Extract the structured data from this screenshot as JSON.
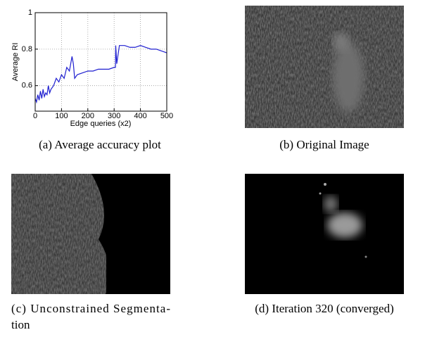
{
  "chart_data": {
    "type": "line",
    "ylabel": "Average RI",
    "xlabel": "Edge queries (x2)",
    "x": [
      0,
      5,
      10,
      15,
      20,
      25,
      30,
      35,
      40,
      45,
      50,
      55,
      60,
      70,
      80,
      90,
      100,
      110,
      120,
      130,
      140,
      145,
      150,
      155,
      160,
      180,
      200,
      220,
      240,
      260,
      280,
      300,
      305,
      306,
      310,
      320,
      340,
      360,
      380,
      400,
      420,
      440,
      460,
      480,
      500
    ],
    "values": [
      0.53,
      0.51,
      0.55,
      0.52,
      0.57,
      0.53,
      0.58,
      0.54,
      0.56,
      0.55,
      0.6,
      0.56,
      0.58,
      0.6,
      0.64,
      0.62,
      0.66,
      0.64,
      0.7,
      0.68,
      0.76,
      0.72,
      0.64,
      0.65,
      0.66,
      0.67,
      0.68,
      0.68,
      0.69,
      0.69,
      0.69,
      0.7,
      0.7,
      0.82,
      0.72,
      0.82,
      0.82,
      0.81,
      0.81,
      0.82,
      0.81,
      0.8,
      0.8,
      0.79,
      0.78
    ],
    "color": "#1f1fd0",
    "xlim": [
      0,
      500
    ],
    "ylim": [
      0.46,
      1
    ],
    "xticks": [
      0,
      100,
      200,
      300,
      400,
      500
    ],
    "yticks": [
      0.6,
      0.8,
      1
    ],
    "grid": true
  },
  "captions": {
    "a": "(a) Average accuracy plot",
    "b": "(b) Original Image",
    "c": [
      "(c) Unconstrained Segmenta-",
      "tion"
    ],
    "d": "(d) Iteration 320 (converged)"
  }
}
